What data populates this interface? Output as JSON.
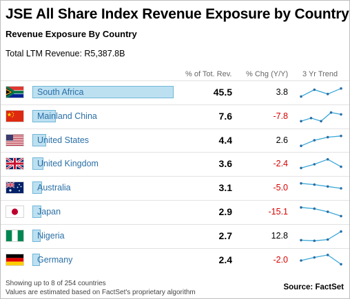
{
  "header": {
    "title": "JSE All Share Index Revenue Exposure by Country",
    "subtitle": "Revenue Exposure By Country",
    "total_revenue": "Total LTM Revenue: R5,387.8B"
  },
  "columns": {
    "share": "% of Tot. Rev.",
    "change": "% Chg (Y/Y)",
    "trend": "3 Yr Trend"
  },
  "colors": {
    "bar_fill": "#bde0f1",
    "bar_border": "#6fb6d8",
    "label": "#2a6fa6",
    "negative": "#d80000",
    "sparkline": "#3aa7d8"
  },
  "chart_data": {
    "type": "table",
    "rows": [
      {
        "country": "South Africa",
        "flag": "south-africa-flag",
        "share": 45.5,
        "share_label": "45.5",
        "change": 3.8,
        "change_label": "3.8",
        "trend": [
          0.2,
          0.75,
          0.4,
          0.85
        ]
      },
      {
        "country": "Mainland China",
        "flag": "china-flag",
        "share": 7.6,
        "share_label": "7.6",
        "change": -7.8,
        "change_label": "-7.8",
        "trend": [
          0.15,
          0.4,
          0.15,
          0.85,
          0.7
        ]
      },
      {
        "country": "United States",
        "flag": "us-flag",
        "share": 4.4,
        "share_label": "4.4",
        "change": 2.6,
        "change_label": "2.6",
        "trend": [
          0.1,
          0.55,
          0.8,
          0.9
        ]
      },
      {
        "country": "United Kingdom",
        "flag": "uk-flag",
        "share": 3.6,
        "share_label": "3.6",
        "change": -2.4,
        "change_label": "-2.4",
        "trend": [
          0.2,
          0.5,
          0.9,
          0.3
        ]
      },
      {
        "country": "Australia",
        "flag": "australia-flag",
        "share": 3.1,
        "share_label": "3.1",
        "change": -5.0,
        "change_label": "-5.0",
        "trend": [
          0.9,
          0.8,
          0.65,
          0.5
        ]
      },
      {
        "country": "Japan",
        "flag": "japan-flag",
        "share": 2.9,
        "share_label": "2.9",
        "change": -15.1,
        "change_label": "-15.1",
        "trend": [
          0.9,
          0.8,
          0.55,
          0.2
        ]
      },
      {
        "country": "Nigeria",
        "flag": "nigeria-flag",
        "share": 2.7,
        "share_label": "2.7",
        "change": 12.8,
        "change_label": "12.8",
        "trend": [
          0.2,
          0.15,
          0.25,
          0.9
        ]
      },
      {
        "country": "Germany",
        "flag": "germany-flag",
        "share": 2.4,
        "share_label": "2.4",
        "change": -2.0,
        "change_label": "-2.0",
        "trend": [
          0.5,
          0.75,
          0.95,
          0.2
        ]
      }
    ]
  },
  "footer": {
    "note1": "Showing up to 8 of 254 countries",
    "note2": "Values are estimated based on FactSet's proprietary algorithm",
    "source": "Source: FactSet"
  }
}
